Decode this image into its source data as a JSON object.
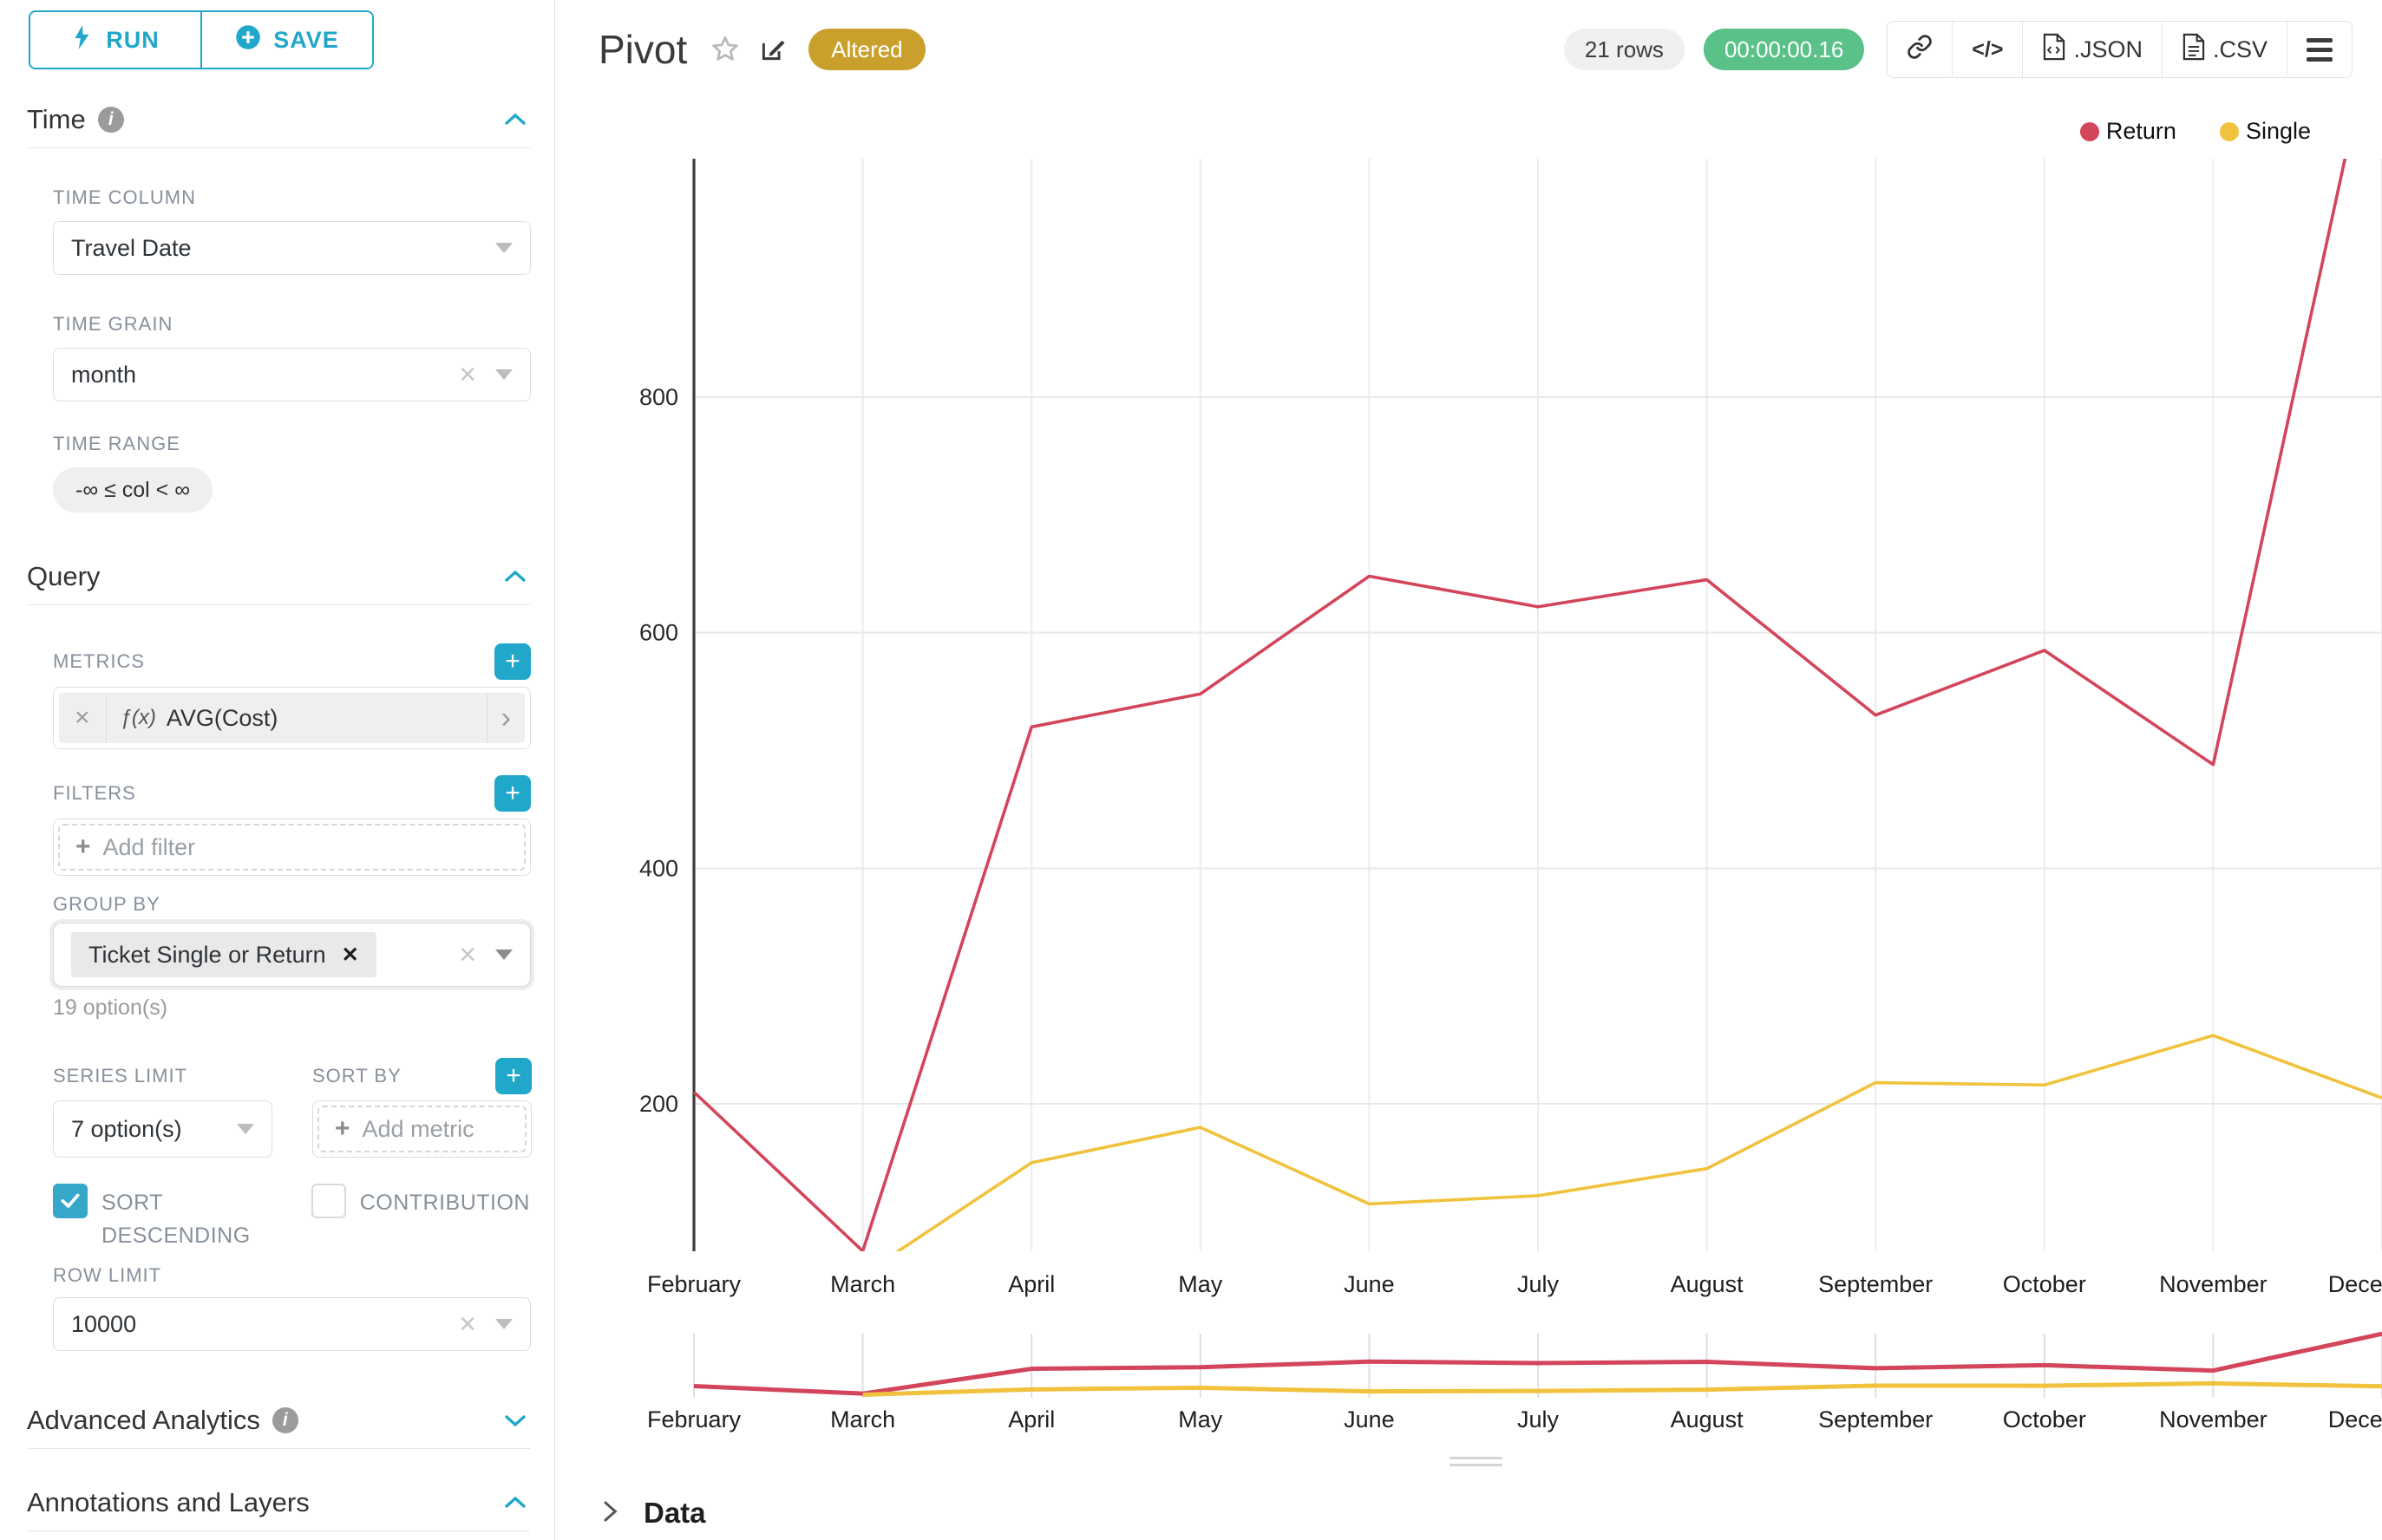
{
  "colors": {
    "accent": "#20a7c9",
    "altered_badge": "#c9a02c",
    "timer_badge": "#5ac189",
    "return_series": "#d3455b",
    "single_series": "#f0c23d"
  },
  "toolbar": {
    "run": "RUN",
    "save": "SAVE"
  },
  "sidebar": {
    "time": {
      "title": "Time",
      "time_column_label": "TIME COLUMN",
      "time_column_value": "Travel Date",
      "time_grain_label": "TIME GRAIN",
      "time_grain_value": "month",
      "time_range_label": "TIME RANGE",
      "time_range_value": "-∞ ≤ col < ∞"
    },
    "query": {
      "title": "Query",
      "metrics_label": "METRICS",
      "metric_fx": "ƒ(x)",
      "metric_value": "AVG(Cost)",
      "filters_label": "FILTERS",
      "add_filter_placeholder": "Add filter",
      "group_by_label": "GROUP BY",
      "group_by_value": "Ticket Single or Return",
      "group_by_options_hint": "19 option(s)",
      "series_limit_label": "SERIES LIMIT",
      "series_limit_value": "7 option(s)",
      "sort_by_label": "SORT BY",
      "add_metric_placeholder": "Add metric",
      "sort_descending_label": "SORT DESCENDING",
      "sort_descending_checked": true,
      "contribution_label": "CONTRIBUTION",
      "contribution_checked": false,
      "row_limit_label": "ROW LIMIT",
      "row_limit_value": "10000"
    },
    "advanced_analytics": {
      "title": "Advanced Analytics"
    },
    "annotations": {
      "title": "Annotations and Layers"
    }
  },
  "header": {
    "title": "Pivot",
    "altered_badge": "Altered",
    "rows_badge": "21 rows",
    "timer": "00:00:00.16",
    "export_json": ".JSON",
    "export_csv": ".CSV"
  },
  "data_panel": {
    "title": "Data"
  },
  "chart_data": {
    "type": "line",
    "categories": [
      "February",
      "March",
      "April",
      "May",
      "June",
      "July",
      "August",
      "September",
      "October",
      "November",
      "December"
    ],
    "series": [
      {
        "name": "Return",
        "color": "#d3455b",
        "values": [
          210,
          75,
          520,
          548,
          648,
          622,
          645,
          530,
          585,
          488,
          1147
        ]
      },
      {
        "name": "Single",
        "color": "#f0c23d",
        "values": [
          null,
          55,
          150,
          180,
          115,
          122,
          145,
          218,
          216,
          258,
          205
        ]
      }
    ],
    "title": "",
    "xlabel": "",
    "ylabel": "",
    "yticks": [
      200,
      400,
      600,
      800
    ],
    "ylim": [
      75,
      1000
    ],
    "grid": true,
    "legend_position": "top-right",
    "has_range_selector": true
  }
}
